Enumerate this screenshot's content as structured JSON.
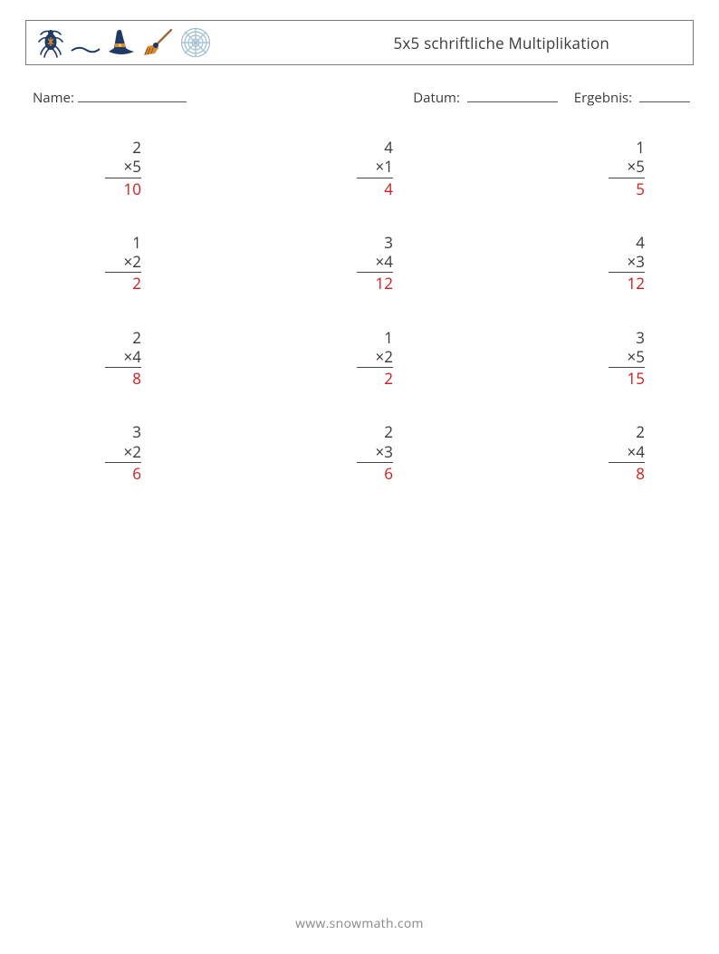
{
  "header": {
    "title": "5x5 schriftliche Multiplikation",
    "icons": [
      "spider",
      "moon",
      "witch-hat",
      "broom",
      "spider-web"
    ]
  },
  "meta": {
    "name_label": "Name:",
    "date_label": "Datum:",
    "result_label": "Ergebnis:"
  },
  "style": {
    "text_color": "#3a3a3a",
    "answer_color": "#d11a1a",
    "border_color": "#7a7a7a",
    "rule_color": "#444444",
    "background_color": "#ffffff",
    "font_family": "Segoe UI / Open Sans / Arial",
    "title_fontsize_pt": 13,
    "body_fontsize_pt": 13,
    "icon_palette": {
      "navy": "#1f3a63",
      "orange": "#d78a2e",
      "web": "#9fbecf",
      "stick": "#9b6a3a"
    }
  },
  "problems": [
    [
      {
        "a": "2",
        "b": "5",
        "ans": "10"
      },
      {
        "a": "4",
        "b": "1",
        "ans": "4"
      },
      {
        "a": "1",
        "b": "5",
        "ans": "5"
      }
    ],
    [
      {
        "a": "1",
        "b": "2",
        "ans": "2"
      },
      {
        "a": "3",
        "b": "4",
        "ans": "12"
      },
      {
        "a": "4",
        "b": "3",
        "ans": "12"
      }
    ],
    [
      {
        "a": "2",
        "b": "4",
        "ans": "8"
      },
      {
        "a": "1",
        "b": "2",
        "ans": "2"
      },
      {
        "a": "3",
        "b": "5",
        "ans": "15"
      }
    ],
    [
      {
        "a": "3",
        "b": "2",
        "ans": "6"
      },
      {
        "a": "2",
        "b": "3",
        "ans": "6"
      },
      {
        "a": "2",
        "b": "4",
        "ans": "8"
      }
    ]
  ],
  "footer": "www.snowmath.com"
}
